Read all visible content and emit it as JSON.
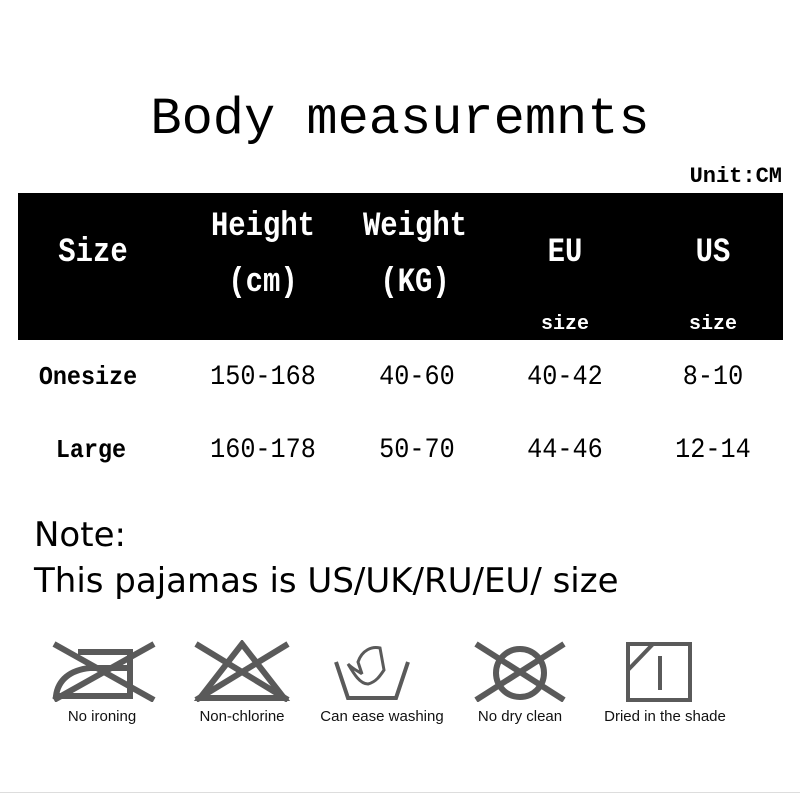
{
  "title": "Body measuremnts",
  "unit": "Unit:CM",
  "table": {
    "headers": [
      {
        "line1": "Size",
        "line2": "",
        "sub": ""
      },
      {
        "line1": "Height",
        "line2": "(cm)",
        "sub": ""
      },
      {
        "line1": "Weight",
        "line2": "(KG)",
        "sub": ""
      },
      {
        "line1": "EU",
        "line2": "",
        "sub": "size"
      },
      {
        "line1": "US",
        "line2": "",
        "sub": "size"
      }
    ],
    "rows": [
      [
        "Onesize",
        "150-168",
        "40-60",
        "40-42",
        "8-10"
      ],
      [
        "Large",
        "160-178",
        "50-70",
        "44-46",
        "12-14"
      ]
    ]
  },
  "note": {
    "label": "Note:",
    "text": "This pajamas is US/UK/RU/EU/ size"
  },
  "care": [
    {
      "icon": "no-ironing-icon",
      "label": "No ironing"
    },
    {
      "icon": "non-chlorine-icon",
      "label": "Non-chlorine"
    },
    {
      "icon": "hand-wash-icon",
      "label": "Can ease washing"
    },
    {
      "icon": "no-dry-clean-icon",
      "label": "No dry clean"
    },
    {
      "icon": "dry-in-shade-icon",
      "label": "Dried in the shade"
    }
  ],
  "colors": {
    "header_bg": "#000000",
    "icon_gray": "#5a5a5a"
  }
}
